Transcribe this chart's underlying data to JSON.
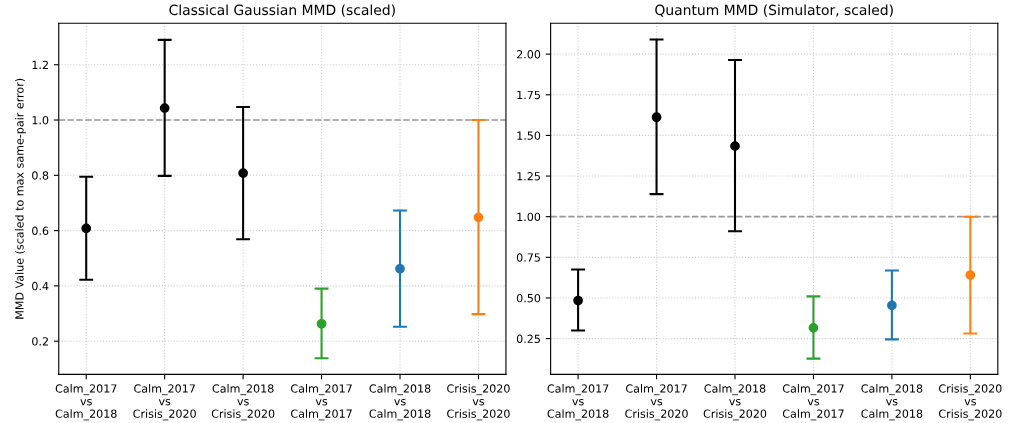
{
  "chart_data": [
    {
      "type": "scatter",
      "title": "Classical Gaussian MMD (scaled)",
      "ylabel": "MMD Value (scaled to max same-pair error)",
      "categories": [
        "Calm_2017\nvs\nCalm_2018",
        "Calm_2017\nvs\nCrisis_2020",
        "Calm_2018\nvs\nCrisis_2020",
        "Calm_2017\nvs\nCalm_2017",
        "Calm_2018\nvs\nCalm_2018",
        "Crisis_2020\nvs\nCrisis_2020"
      ],
      "values": [
        0.608,
        1.043,
        0.808,
        0.263,
        0.462,
        0.648
      ],
      "errors": [
        [
          0.422,
          0.795
        ],
        [
          0.798,
          1.29
        ],
        [
          0.569,
          1.047
        ],
        [
          0.138,
          0.39
        ],
        [
          0.252,
          0.673
        ],
        [
          0.298,
          1.0
        ]
      ],
      "colors": [
        "#000000",
        "#000000",
        "#000000",
        "#2ca02c",
        "#1f77b4",
        "#ff7f0e"
      ],
      "ylim": [
        0.08,
        1.35
      ],
      "yticks": [
        {
          "value": 0.2,
          "label": "0.2"
        },
        {
          "value": 0.4,
          "label": "0.4"
        },
        {
          "value": 0.6,
          "label": "0.6"
        },
        {
          "value": 0.8,
          "label": "0.8"
        },
        {
          "value": 1.0,
          "label": "1.0"
        },
        {
          "value": 1.2,
          "label": "1.2"
        }
      ],
      "ref_lines": [
        {
          "axis": "y",
          "value": 1.0,
          "color": "#999999",
          "line_style": "dashed"
        }
      ],
      "grid": true,
      "marker": "circle"
    },
    {
      "type": "scatter",
      "title": "Quantum MMD (Simulator, scaled)",
      "categories": [
        "Calm_2017\nvs\nCalm_2018",
        "Calm_2017\nvs\nCrisis_2020",
        "Calm_2018\nvs\nCrisis_2020",
        "Calm_2017\nvs\nCalm_2017",
        "Calm_2018\nvs\nCalm_2018",
        "Crisis_2020\nvs\nCrisis_2020"
      ],
      "values": [
        0.484,
        1.612,
        1.434,
        0.316,
        0.454,
        0.641
      ],
      "errors": [
        [
          0.3,
          0.675
        ],
        [
          1.139,
          2.09
        ],
        [
          0.91,
          1.964
        ],
        [
          0.127,
          0.51
        ],
        [
          0.245,
          0.669
        ],
        [
          0.281,
          1.0
        ]
      ],
      "colors": [
        "#000000",
        "#000000",
        "#000000",
        "#2ca02c",
        "#1f77b4",
        "#ff7f0e"
      ],
      "ylim": [
        0.03,
        2.19
      ],
      "yticks": [
        {
          "value": 0.25,
          "label": "0.25"
        },
        {
          "value": 0.5,
          "label": "0.50"
        },
        {
          "value": 0.75,
          "label": "0.75"
        },
        {
          "value": 1.0,
          "label": "1.00"
        },
        {
          "value": 1.25,
          "label": "1.25"
        },
        {
          "value": 1.5,
          "label": "1.50"
        },
        {
          "value": 1.75,
          "label": "1.75"
        },
        {
          "value": 2.0,
          "label": "2.00"
        }
      ],
      "ref_lines": [
        {
          "axis": "y",
          "value": 1.0,
          "color": "#999999",
          "line_style": "dashed"
        }
      ],
      "grid": true,
      "marker": "circle"
    }
  ]
}
